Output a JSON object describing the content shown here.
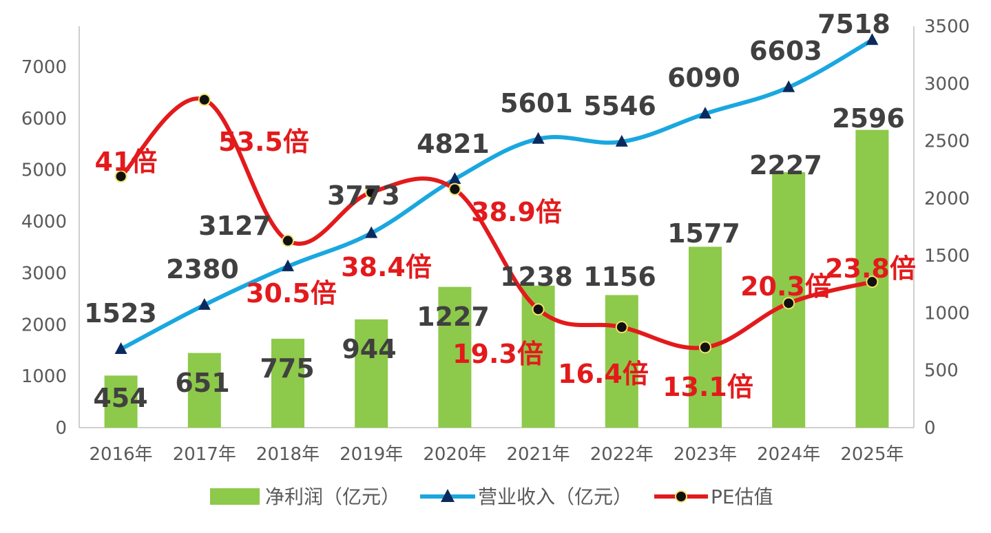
{
  "chart_data": {
    "type": "bar",
    "categories": [
      "2016年",
      "2017年",
      "2018年",
      "2019年",
      "2020年",
      "2021年",
      "2022年",
      "2023年",
      "2024年",
      "2025年"
    ],
    "series": [
      {
        "name": "净利润（亿元）",
        "type": "bar",
        "axis": "right",
        "values": [
          454,
          651,
          775,
          944,
          1227,
          1238,
          1156,
          1577,
          2227,
          2596
        ]
      },
      {
        "name": "营业收入（亿元）",
        "type": "line",
        "axis": "left",
        "values": [
          1523,
          2380,
          3127,
          3773,
          4821,
          5601,
          5546,
          6090,
          6603,
          7518
        ]
      },
      {
        "name": "PE估值",
        "type": "line",
        "axis": "right",
        "values": [
          41,
          53.5,
          30.5,
          38.4,
          38.9,
          19.3,
          16.4,
          13.1,
          20.3,
          23.8
        ],
        "labels": [
          "41倍",
          "53.5倍",
          "30.5倍",
          "38.4倍",
          "38.9倍",
          "19.3倍",
          "16.4倍",
          "13.1倍",
          "20.3倍",
          "23.8倍"
        ]
      }
    ],
    "left_axis": {
      "min": 0,
      "max": 7000,
      "ticks": [
        0,
        1000,
        2000,
        3000,
        4000,
        5000,
        6000,
        7000
      ]
    },
    "right_axis": {
      "min": 0,
      "max": 3500,
      "ticks": [
        0,
        500,
        1000,
        1500,
        2000,
        2500,
        3000,
        3500
      ]
    },
    "grid": false,
    "legend": "bottom",
    "colors": {
      "bar": "#8dc94a",
      "revenue": "#1aa7e0",
      "pe": "#e31a1c",
      "marker": "#0a2a5e",
      "axis": "#bfbfbf"
    }
  }
}
